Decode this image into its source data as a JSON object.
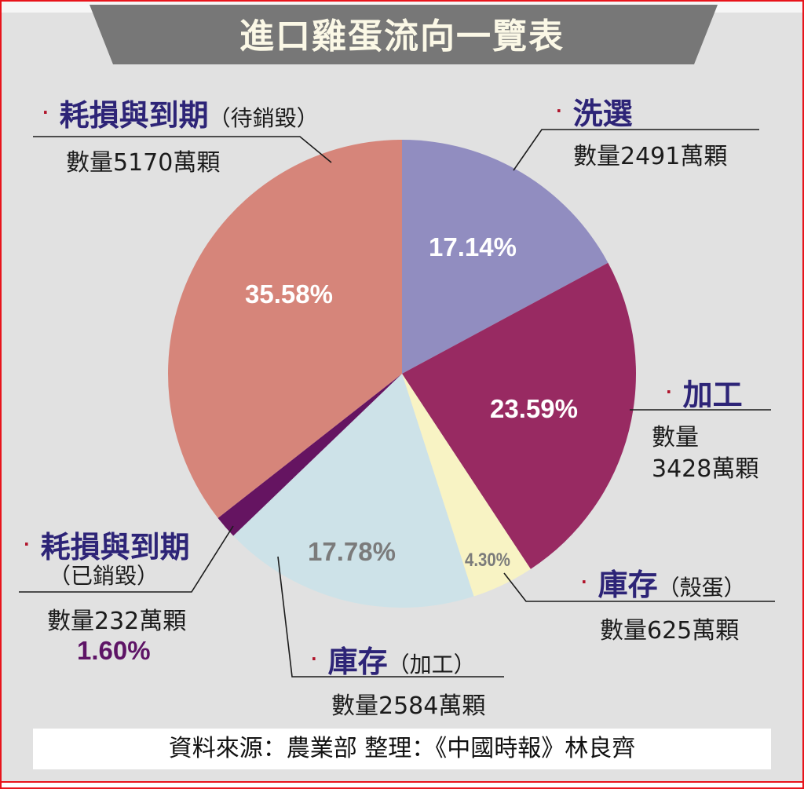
{
  "title": "進口雞蛋流向一覽表",
  "source": "資料來源：農業部  整理：《中國時報》林良齊",
  "colors": {
    "border": "#e8141b",
    "background": "#e1e1e1",
    "title_band": "#777777",
    "category_text": "#2d2477",
    "bullet": "#b0132a",
    "slice_1_60_label": "#5e1466"
  },
  "labels": {
    "washed": {
      "bullet": "·",
      "name": "洗選",
      "qty": "數量2491萬顆",
      "pct": "17.14%"
    },
    "processed": {
      "bullet": "·",
      "name": "加工",
      "qty_line1": "數量",
      "qty_line2": "3428萬顆",
      "pct": "23.59%"
    },
    "stock_shell": {
      "bullet": "·",
      "name": "庫存",
      "note": "（殼蛋）",
      "qty": "數量625萬顆",
      "pct": "4.30%"
    },
    "stock_processed": {
      "bullet": "·",
      "name": "庫存",
      "note": "（加工）",
      "qty": "數量2584萬顆",
      "pct": "17.78%"
    },
    "destroyed": {
      "bullet": "·",
      "name": "耗損與到期",
      "note": "（已銷毀）",
      "qty": "數量232萬顆",
      "pct": "1.60%"
    },
    "pending": {
      "bullet": "·",
      "name": "耗損與到期",
      "note": "（待銷毀）",
      "qty": "數量5170萬顆",
      "pct": "35.58%"
    }
  },
  "chart_data": {
    "type": "pie",
    "title": "進口雞蛋流向一覽表",
    "unit": "萬顆",
    "start_angle": "12 o'clock, clockwise",
    "categories": [
      "洗選",
      "加工",
      "庫存（殼蛋）",
      "庫存（加工）",
      "耗損與到期（已銷毀）",
      "耗損與到期（待銷毀）"
    ],
    "values": [
      2491,
      3428,
      625,
      2584,
      232,
      5170
    ],
    "percentages": [
      17.14,
      23.59,
      4.3,
      17.78,
      1.6,
      35.58
    ],
    "colors": [
      "#918dc0",
      "#982a62",
      "#f8f3c4",
      "#cde2e8",
      "#651461",
      "#d6857a"
    ],
    "source": "資料來源：農業部 整理：《中國時報》林良齊"
  }
}
